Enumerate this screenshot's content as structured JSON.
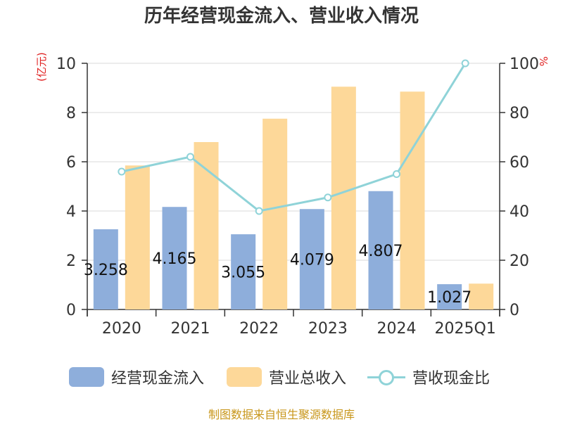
{
  "title": "历年经营现金流入、营业收入情况",
  "source": "制图数据来自恒生聚源数据库",
  "chart_data": {
    "type": "bar",
    "categories": [
      "2020",
      "2021",
      "2022",
      "2023",
      "2024",
      "2025Q1"
    ],
    "series": [
      {
        "name": "经营现金流入",
        "kind": "bar",
        "axis": "left",
        "color": "#8eaedb",
        "values": [
          3.258,
          4.165,
          3.055,
          4.079,
          4.807,
          1.027
        ],
        "labels": [
          "3.258",
          "4.165",
          "3.055",
          "4.079",
          "4.807",
          "1.027"
        ]
      },
      {
        "name": "营业总收入",
        "kind": "bar",
        "axis": "left",
        "color": "#fdd899",
        "values": [
          5.85,
          6.8,
          7.75,
          9.05,
          8.85,
          1.05
        ]
      },
      {
        "name": "营收现金比",
        "kind": "line",
        "axis": "right",
        "color": "#8fd3d8",
        "values": [
          56,
          62,
          40,
          45.5,
          55,
          100
        ]
      }
    ],
    "y_left": {
      "unit": "(亿元)",
      "min": 0,
      "max": 10,
      "ticks": [
        0,
        2,
        4,
        6,
        8,
        10
      ]
    },
    "y_right": {
      "unit": "%",
      "min": 0,
      "max": 100,
      "ticks": [
        0,
        20,
        40,
        60,
        80,
        100
      ]
    },
    "grid": true,
    "legend_position": "bottom"
  }
}
